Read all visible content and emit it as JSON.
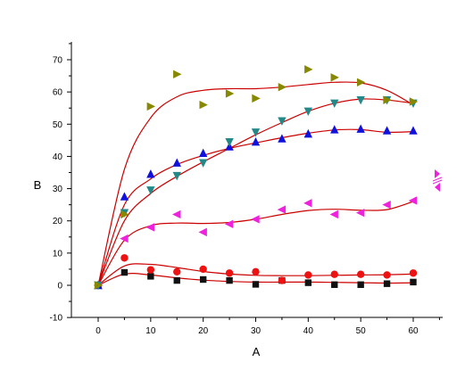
{
  "chart_data": {
    "type": "scatter",
    "title": "",
    "xlabel": "A",
    "ylabel": "B",
    "xlim": [
      -5,
      65
    ],
    "ylim": [
      -10,
      75
    ],
    "xticks": [
      0,
      10,
      20,
      30,
      40,
      50,
      60
    ],
    "yticks": [
      -10,
      0,
      10,
      20,
      30,
      40,
      50,
      60,
      70
    ],
    "grid": false,
    "legend": "none",
    "fit_color": "#cc0000",
    "series": [
      {
        "marker": "square",
        "color": "#111111",
        "x": [
          0,
          5,
          10,
          15,
          20,
          25,
          30,
          35,
          40,
          45,
          50,
          55,
          60
        ],
        "y": [
          0,
          4,
          2.8,
          1.5,
          1.8,
          1.5,
          0.3,
          1.5,
          0.8,
          0.2,
          0.2,
          0.5,
          1
        ],
        "fit": [
          [
            0,
            0
          ],
          [
            5,
            3.5
          ],
          [
            10,
            3.2
          ],
          [
            15,
            2.3
          ],
          [
            20,
            1.6
          ],
          [
            25,
            1.2
          ],
          [
            30,
            1
          ],
          [
            35,
            1
          ],
          [
            40,
            1
          ],
          [
            45,
            0.9
          ],
          [
            50,
            0.8
          ],
          [
            55,
            0.7
          ],
          [
            60,
            0.8
          ]
        ]
      },
      {
        "marker": "circle",
        "color": "#ee1111",
        "x": [
          0,
          5,
          10,
          15,
          20,
          25,
          30,
          35,
          40,
          45,
          50,
          55,
          60
        ],
        "y": [
          0,
          8.5,
          4.8,
          4.2,
          5,
          3.8,
          4.2,
          1.5,
          3.2,
          3.4,
          3.4,
          3.2,
          3.8
        ],
        "fit": [
          [
            0,
            0
          ],
          [
            5,
            6
          ],
          [
            10,
            6.5
          ],
          [
            15,
            5.5
          ],
          [
            20,
            4.3
          ],
          [
            25,
            3.5
          ],
          [
            30,
            3.1
          ],
          [
            35,
            3
          ],
          [
            40,
            3
          ],
          [
            45,
            3.1
          ],
          [
            50,
            3.2
          ],
          [
            55,
            3.3
          ],
          [
            60,
            3.5
          ]
        ]
      },
      {
        "marker": "triangle-left",
        "color": "#ee22dd",
        "x": [
          0,
          5,
          10,
          15,
          20,
          25,
          30,
          35,
          40,
          45,
          50,
          55,
          60
        ],
        "y": [
          0,
          14.5,
          18,
          22,
          16.5,
          19,
          20.5,
          23.5,
          25.5,
          22,
          22.5,
          25,
          26.3
        ],
        "fit": [
          [
            0,
            0
          ],
          [
            5,
            14
          ],
          [
            10,
            18.5
          ],
          [
            15,
            19.3
          ],
          [
            20,
            19.2
          ],
          [
            25,
            19.5
          ],
          [
            30,
            20.5
          ],
          [
            35,
            22
          ],
          [
            40,
            23.2
          ],
          [
            45,
            23.6
          ],
          [
            50,
            23.3
          ],
          [
            55,
            23.5
          ],
          [
            60,
            26
          ]
        ]
      },
      {
        "marker": "triangle-up",
        "color": "#1111dd",
        "x": [
          0,
          5,
          10,
          15,
          20,
          25,
          30,
          35,
          40,
          45,
          50,
          55,
          60
        ],
        "y": [
          0,
          27.5,
          34.5,
          38,
          41,
          43,
          44.5,
          45.5,
          47,
          48.3,
          48.5,
          48,
          48
        ],
        "fit": [
          [
            0,
            0
          ],
          [
            5,
            25
          ],
          [
            10,
            33
          ],
          [
            15,
            37.5
          ],
          [
            20,
            40.3
          ],
          [
            25,
            42.5
          ],
          [
            30,
            44.2
          ],
          [
            35,
            45.8
          ],
          [
            40,
            47.2
          ],
          [
            45,
            48.2
          ],
          [
            50,
            48.3
          ],
          [
            55,
            47.5
          ],
          [
            60,
            47.7
          ]
        ]
      },
      {
        "marker": "triangle-down",
        "color": "#228888",
        "x": [
          0,
          5,
          10,
          15,
          20,
          25,
          30,
          35,
          40,
          45,
          50,
          55,
          60
        ],
        "y": [
          0,
          22.5,
          29.5,
          34,
          38,
          44.5,
          47.5,
          51,
          54,
          56.5,
          57.5,
          57.5,
          56.5
        ],
        "fit": [
          [
            0,
            0
          ],
          [
            5,
            20
          ],
          [
            10,
            28.5
          ],
          [
            15,
            33.8
          ],
          [
            20,
            38.3
          ],
          [
            25,
            42.5
          ],
          [
            30,
            46.7
          ],
          [
            35,
            50.5
          ],
          [
            40,
            54
          ],
          [
            45,
            56.5
          ],
          [
            50,
            57.8
          ],
          [
            55,
            57.5
          ],
          [
            60,
            56.5
          ]
        ]
      },
      {
        "marker": "triangle-right",
        "color": "#888800",
        "x": [
          0,
          5,
          10,
          15,
          20,
          25,
          30,
          35,
          40,
          45,
          50,
          55,
          60
        ],
        "y": [
          0,
          22,
          55.5,
          65.5,
          56,
          59.5,
          58,
          61.5,
          67,
          64.5,
          63,
          57.5,
          57
        ],
        "fit": [
          [
            0,
            0
          ],
          [
            5,
            36
          ],
          [
            10,
            52
          ],
          [
            15,
            58.5
          ],
          [
            20,
            60.5
          ],
          [
            25,
            61
          ],
          [
            30,
            61
          ],
          [
            35,
            61.5
          ],
          [
            40,
            62.3
          ],
          [
            45,
            63
          ],
          [
            50,
            62.8
          ],
          [
            55,
            60.5
          ],
          [
            60,
            56
          ]
        ]
      }
    ]
  }
}
